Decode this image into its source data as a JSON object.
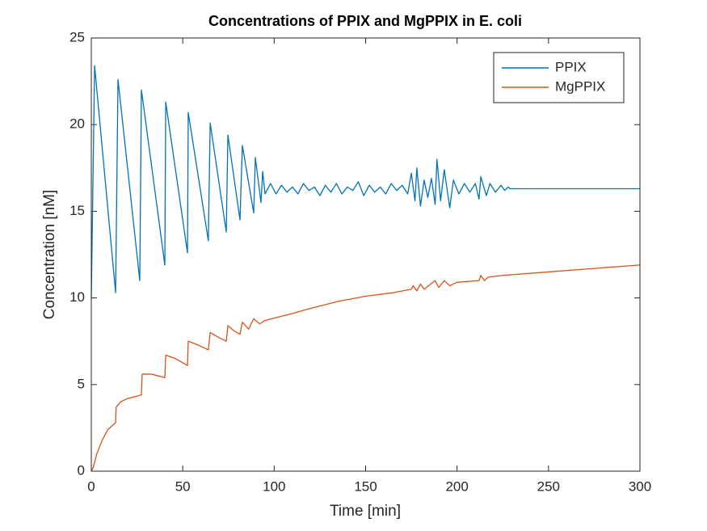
{
  "chart_data": {
    "type": "line",
    "title": "Concentrations of PPIX and MgPPIX in E. coli",
    "x_label": "Time [min]",
    "y_label": "Concentration [nM]",
    "xlim": [
      0,
      300
    ],
    "xticks": [
      0,
      50,
      100,
      150,
      200,
      250,
      300
    ],
    "ylim": [
      0,
      25
    ],
    "yticks": [
      0,
      5,
      10,
      15,
      20,
      25
    ],
    "legend": "northeast",
    "grid": false,
    "series": [
      {
        "name": "PPIX",
        "color": "#0072BD",
        "x": [
          0,
          1.8,
          13.3,
          14.6,
          26.5,
          27.4,
          40.2,
          40.7,
          52.6,
          53,
          64,
          65,
          73.8,
          74.7,
          81.3,
          82.6,
          88.8,
          89.7,
          92.8,
          93.7,
          95,
          98,
          101,
          104,
          107,
          110,
          113,
          116,
          119,
          122,
          125,
          128,
          131,
          134,
          137,
          140,
          143,
          146,
          149,
          152,
          155,
          158,
          161,
          164,
          167,
          170,
          173,
          175,
          177,
          178,
          180,
          182,
          184,
          186,
          188,
          189,
          191,
          193,
          196,
          198,
          201,
          204,
          207,
          210,
          212,
          213,
          216,
          218,
          221,
          224,
          226,
          228,
          229,
          300
        ],
        "values": [
          10,
          23.4,
          10.3,
          22.6,
          11.0,
          22.0,
          11.9,
          21.3,
          12.6,
          20.7,
          13.3,
          20.1,
          13.8,
          19.4,
          14.5,
          18.8,
          14.9,
          18.1,
          15.5,
          17.3,
          16.0,
          16.6,
          16.0,
          16.5,
          16.1,
          16.4,
          16.0,
          16.6,
          16.2,
          16.4,
          15.9,
          16.5,
          16.1,
          16.6,
          16.0,
          16.4,
          16.2,
          16.7,
          15.9,
          16.5,
          16.1,
          16.4,
          16.0,
          16.6,
          16.2,
          16.5,
          16.0,
          17.2,
          15.6,
          17.5,
          15.3,
          16.8,
          15.8,
          16.9,
          15.4,
          18.0,
          15.6,
          17.4,
          15.2,
          16.8,
          16.0,
          16.6,
          16.1,
          16.6,
          15.7,
          17.0,
          15.9,
          16.6,
          16.1,
          16.5,
          16.2,
          16.4,
          16.3,
          16.3
        ]
      },
      {
        "name": "MgPPIX",
        "color": "#D95319",
        "x": [
          0,
          1,
          3,
          6,
          9,
          13.3,
          13.6,
          16,
          20,
          24,
          27.4,
          27.8,
          33,
          40.2,
          40.7,
          46,
          52.6,
          53,
          58,
          64,
          65,
          70,
          73.8,
          74.7,
          78,
          81.3,
          82.6,
          86,
          88.8,
          92,
          95,
          110,
          120,
          135,
          150,
          165,
          175,
          176,
          178,
          180,
          182,
          188,
          190,
          193,
          196,
          200,
          212,
          213,
          215,
          217,
          225,
          250,
          275,
          300
        ],
        "values": [
          0,
          0.2,
          1.0,
          1.8,
          2.4,
          2.8,
          3.7,
          4.0,
          4.2,
          4.3,
          4.4,
          5.6,
          5.6,
          5.4,
          6.7,
          6.5,
          6.1,
          7.5,
          7.3,
          7.0,
          8.0,
          7.7,
          7.5,
          8.4,
          8.1,
          7.9,
          8.6,
          8.2,
          8.8,
          8.5,
          8.7,
          9.1,
          9.4,
          9.8,
          10.1,
          10.3,
          10.5,
          10.7,
          10.4,
          10.8,
          10.5,
          11.0,
          10.6,
          11.0,
          10.7,
          10.9,
          11.0,
          11.3,
          11.0,
          11.2,
          11.3,
          11.5,
          11.7,
          11.9
        ]
      }
    ]
  }
}
